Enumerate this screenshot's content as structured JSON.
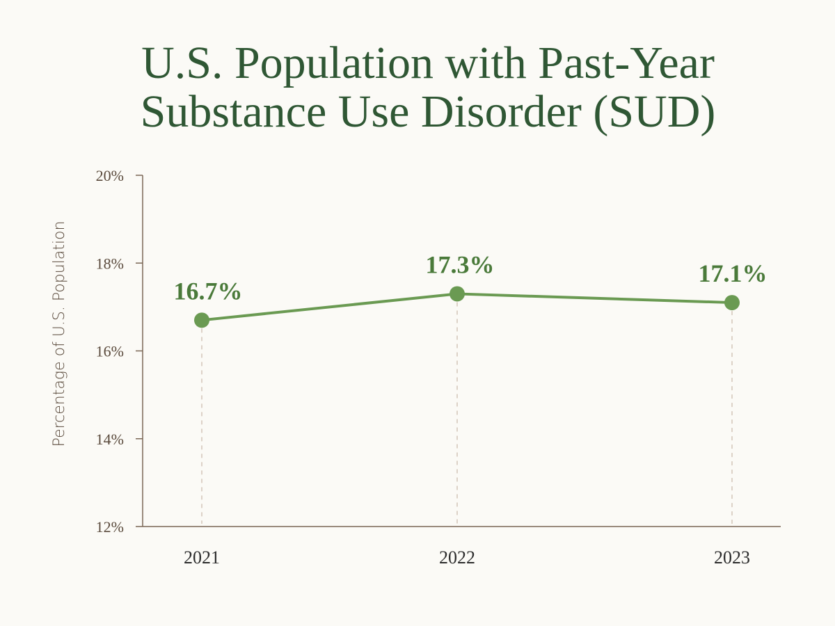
{
  "colors": {
    "background": "#fbfaf6",
    "title": "#2f5734",
    "axis": "#7a6655",
    "tick_text": "#5a4a3c",
    "line": "#6a9a52",
    "marker": "#6a9a52",
    "data_label": "#4a7a3a",
    "guide": "#c9b8a8"
  },
  "chart_data": {
    "type": "line",
    "title": [
      "U.S. Population with Past-Year",
      "Substance Use Disorder (SUD)"
    ],
    "xlabel": "",
    "ylabel": "Percentage of U.S. Population",
    "categories": [
      "2021",
      "2022",
      "2023"
    ],
    "series": [
      {
        "values": [
          16.7,
          17.3,
          17.1
        ],
        "labels": [
          "16.7%",
          "17.3%",
          "17.1%"
        ]
      }
    ],
    "ylim": [
      12,
      20
    ],
    "yticks": [
      12,
      14,
      16,
      18,
      20
    ],
    "ytick_labels": [
      "12%",
      "14%",
      "16%",
      "18%",
      "20%"
    ],
    "grid": false,
    "legend": "none"
  }
}
